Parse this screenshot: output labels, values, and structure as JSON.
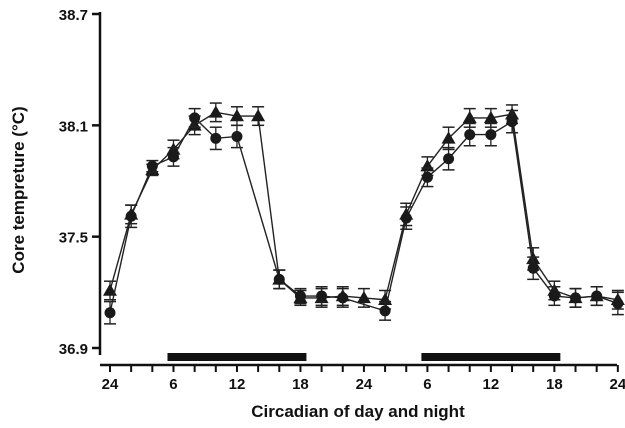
{
  "chart_data": {
    "type": "line",
    "xlabel": "Circadian of day and night",
    "ylabel": "Core tempreture (°C)",
    "ylim": [
      36.9,
      38.7
    ],
    "y_ticks": [
      "36.9",
      "37.5",
      "38.1",
      "38.7"
    ],
    "x_tick_labels": [
      "24",
      "6",
      "12",
      "18",
      "24",
      "6",
      "12",
      "18",
      "24"
    ],
    "grid": false,
    "legend": "none",
    "x": [
      0,
      2,
      4,
      6,
      8,
      10,
      12,
      14,
      16,
      18,
      20,
      22,
      24,
      26,
      28,
      30,
      32,
      34,
      36,
      38,
      40,
      42,
      44,
      46,
      48
    ],
    "dark_periods": [
      [
        6,
        18
      ],
      [
        30,
        42
      ]
    ],
    "series": [
      {
        "marker": "triangle",
        "values": [
          37.21,
          37.62,
          37.86,
          37.97,
          38.1,
          38.17,
          38.15,
          38.15,
          37.27,
          37.17,
          37.17,
          37.18,
          37.17,
          37.16,
          37.62,
          37.88,
          38.03,
          38.14,
          38.14,
          38.16,
          37.38,
          37.21,
          37.17,
          37.18,
          37.16
        ],
        "error": [
          0.05,
          0.05,
          0.03,
          0.05,
          0.05,
          0.05,
          0.05,
          0.05,
          0.05,
          0.04,
          0.05,
          0.05,
          0.05,
          0.05,
          0.06,
          0.05,
          0.06,
          0.05,
          0.05,
          0.05,
          0.06,
          0.05,
          0.05,
          0.05,
          0.05
        ]
      },
      {
        "marker": "circle",
        "values": [
          37.09,
          37.61,
          37.88,
          37.93,
          38.14,
          38.03,
          38.04,
          37.27,
          37.18,
          37.18,
          37.17,
          37.1,
          37.6,
          37.82,
          37.92,
          38.05,
          38.05,
          38.12,
          37.33,
          37.18,
          37.17,
          37.18,
          37.14
        ],
        "error": [
          0.06,
          0.06,
          0.03,
          0.05,
          0.05,
          0.06,
          0.06,
          0.05,
          0.04,
          0.05,
          0.05,
          0.05,
          0.06,
          0.05,
          0.06,
          0.06,
          0.06,
          0.06,
          0.06,
          0.05,
          0.05,
          0.05,
          0.06
        ],
        "x": [
          0,
          2,
          4,
          6,
          8,
          10,
          12,
          16,
          18,
          20,
          22,
          26,
          28,
          30,
          32,
          34,
          36,
          38,
          40,
          42,
          44,
          46,
          48
        ]
      }
    ]
  }
}
